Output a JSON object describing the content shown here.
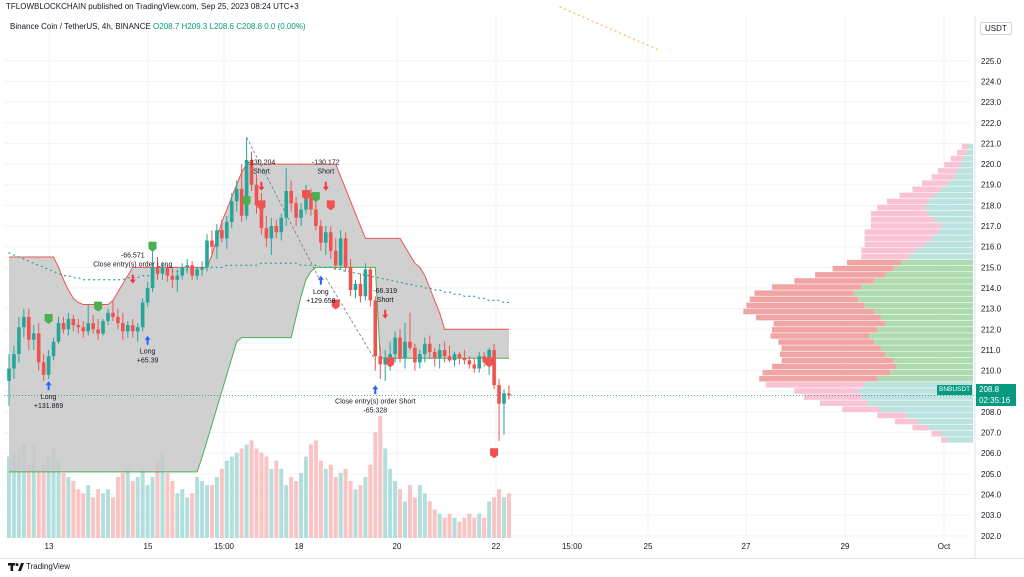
{
  "header": {
    "publisher_text": "TFLOWBLOCKCHAIN published on TradingView.com, Sep 25, 2023 08:24 UTC+3"
  },
  "legend": {
    "symbol": "Binance Coin / TetherUS, 4h, BINANCE",
    "ohlc": "O208.7  H209.3  L208.6  C208.8  0.0 (0.00%)"
  },
  "currency_button": "USDT",
  "price_tag": {
    "price": "208.8",
    "countdown": "02:35:16"
  },
  "symbol_tag": "BNBUSDT",
  "footer": {
    "brand": "TradingView"
  },
  "colors": {
    "up": "#26a69a",
    "down": "#ef5350",
    "channel_fill": "#c8c8c8",
    "channel_upper": "#ef5350",
    "channel_lower": "#4caf50",
    "volume_up": "#b2dfdb",
    "volume_down": "#f8c4c4",
    "price_line": "#089981"
  },
  "chart_data": {
    "type": "candlestick",
    "timeframe": "4h",
    "x_tick_labels": [
      "13",
      "15",
      "15:00",
      "18",
      "20",
      "22",
      "15:00",
      "25",
      "27",
      "29",
      "Oct"
    ],
    "y_tick_labels": [
      "202.0",
      "203.0",
      "204.0",
      "205.0",
      "206.0",
      "207.0",
      "208.0",
      "209.0",
      "210.0",
      "211.0",
      "212.0",
      "213.0",
      "214.0",
      "215.0",
      "216.0",
      "217.0",
      "218.0",
      "219.0",
      "220.0",
      "221.0",
      "222.0",
      "223.0",
      "224.0",
      "225.0"
    ],
    "ylim": [
      201.8,
      226.2
    ],
    "last_price": 208.8,
    "candles": [
      [
        209.5,
        210.8,
        208.3,
        210.1
      ],
      [
        210.1,
        211.2,
        209.6,
        210.8
      ],
      [
        210.8,
        212.6,
        210.4,
        212.1
      ],
      [
        212.1,
        213.0,
        211.6,
        212.6
      ],
      [
        212.6,
        213.0,
        211.0,
        211.5
      ],
      [
        211.5,
        212.2,
        211.0,
        211.8
      ],
      [
        211.8,
        212.3,
        210.0,
        210.4
      ],
      [
        210.4,
        210.8,
        209.5,
        209.8
      ],
      [
        209.8,
        211.0,
        209.6,
        210.7
      ],
      [
        210.7,
        211.6,
        210.5,
        211.4
      ],
      [
        211.4,
        212.6,
        211.3,
        212.3
      ],
      [
        212.3,
        212.6,
        211.8,
        212.0
      ],
      [
        212.0,
        212.8,
        211.7,
        212.5
      ],
      [
        212.5,
        212.7,
        211.9,
        212.2
      ],
      [
        212.2,
        212.5,
        211.8,
        212.1
      ],
      [
        212.1,
        212.4,
        211.6,
        211.9
      ],
      [
        211.9,
        213.2,
        211.7,
        212.3
      ],
      [
        212.3,
        212.7,
        211.8,
        212.0
      ],
      [
        212.0,
        212.5,
        211.5,
        211.8
      ],
      [
        211.8,
        212.5,
        211.7,
        212.4
      ],
      [
        212.4,
        213.0,
        212.2,
        212.8
      ],
      [
        212.8,
        213.4,
        212.4,
        212.6
      ],
      [
        212.6,
        213.0,
        212.0,
        212.3
      ],
      [
        212.3,
        212.8,
        211.5,
        211.9
      ],
      [
        211.9,
        212.4,
        211.6,
        212.2
      ],
      [
        212.2,
        212.5,
        211.6,
        211.9
      ],
      [
        211.9,
        212.3,
        211.4,
        212.1
      ],
      [
        212.1,
        213.5,
        211.9,
        213.3
      ],
      [
        213.3,
        214.3,
        213.1,
        214.0
      ],
      [
        214.0,
        215.8,
        213.8,
        215.0
      ],
      [
        215.0,
        215.5,
        214.4,
        214.7
      ],
      [
        214.7,
        215.2,
        214.4,
        215.0
      ],
      [
        215.0,
        215.1,
        214.3,
        214.6
      ],
      [
        214.6,
        215.0,
        214.0,
        214.4
      ],
      [
        214.4,
        214.9,
        213.8,
        214.6
      ],
      [
        214.6,
        215.2,
        214.4,
        215.0
      ],
      [
        215.0,
        215.4,
        214.7,
        215.1
      ],
      [
        215.1,
        215.3,
        214.4,
        214.6
      ],
      [
        214.6,
        215.0,
        214.4,
        214.9
      ],
      [
        214.9,
        215.3,
        214.6,
        215.0
      ],
      [
        215.0,
        216.6,
        214.8,
        216.3
      ],
      [
        216.3,
        216.8,
        215.6,
        216.0
      ],
      [
        216.0,
        217.1,
        215.4,
        216.8
      ],
      [
        216.8,
        217.3,
        216.2,
        216.4
      ],
      [
        216.4,
        217.5,
        215.9,
        217.2
      ],
      [
        217.2,
        218.6,
        216.9,
        218.2
      ],
      [
        218.2,
        219.2,
        217.7,
        218.8
      ],
      [
        218.8,
        220.0,
        217.2,
        217.5
      ],
      [
        217.5,
        221.3,
        217.3,
        220.2
      ],
      [
        220.2,
        220.6,
        218.7,
        219.0
      ],
      [
        219.0,
        219.5,
        217.6,
        218.0
      ],
      [
        218.0,
        218.6,
        216.6,
        216.9
      ],
      [
        216.9,
        217.5,
        216.0,
        216.4
      ],
      [
        216.4,
        217.4,
        215.6,
        217.0
      ],
      [
        217.0,
        217.3,
        216.4,
        216.7
      ],
      [
        216.7,
        217.6,
        216.3,
        217.4
      ],
      [
        217.4,
        219.8,
        217.0,
        218.7
      ],
      [
        218.7,
        219.2,
        217.7,
        218.1
      ],
      [
        218.1,
        218.4,
        217.0,
        217.4
      ],
      [
        217.4,
        218.1,
        217.0,
        217.8
      ],
      [
        217.8,
        219.0,
        217.6,
        218.6
      ],
      [
        218.6,
        218.8,
        217.5,
        217.8
      ],
      [
        217.8,
        218.2,
        216.8,
        217.0
      ],
      [
        217.0,
        217.3,
        215.8,
        216.2
      ],
      [
        216.2,
        217.0,
        215.6,
        216.7
      ],
      [
        216.7,
        217.0,
        215.4,
        215.8
      ],
      [
        215.8,
        216.4,
        214.9,
        215.1
      ],
      [
        215.1,
        216.8,
        214.9,
        216.4
      ],
      [
        216.4,
        216.7,
        214.8,
        215.0
      ],
      [
        215.0,
        215.4,
        213.6,
        213.9
      ],
      [
        213.9,
        214.4,
        213.5,
        214.2
      ],
      [
        214.2,
        214.7,
        213.3,
        213.6
      ],
      [
        213.6,
        215.2,
        213.4,
        214.9
      ],
      [
        214.9,
        215.0,
        213.1,
        213.4
      ],
      [
        213.4,
        213.6,
        210.0,
        210.7
      ],
      [
        210.7,
        211.2,
        209.6,
        210.3
      ],
      [
        210.3,
        211.0,
        209.5,
        210.6
      ],
      [
        210.6,
        211.4,
        210.0,
        210.8
      ],
      [
        210.8,
        211.9,
        210.4,
        211.6
      ],
      [
        211.6,
        212.0,
        210.4,
        210.6
      ],
      [
        210.6,
        212.3,
        210.1,
        211.4
      ],
      [
        211.4,
        212.8,
        211.0,
        211.1
      ],
      [
        211.1,
        211.3,
        210.0,
        210.4
      ],
      [
        210.4,
        211.0,
        210.1,
        210.8
      ],
      [
        210.8,
        211.6,
        210.4,
        211.3
      ],
      [
        211.3,
        211.7,
        210.6,
        210.9
      ],
      [
        210.9,
        211.1,
        210.2,
        210.6
      ],
      [
        210.6,
        211.3,
        210.1,
        211.0
      ],
      [
        211.0,
        211.4,
        210.4,
        210.7
      ],
      [
        210.7,
        211.2,
        210.4,
        210.5
      ],
      [
        210.5,
        210.9,
        210.2,
        210.8
      ],
      [
        210.8,
        210.9,
        210.3,
        210.6
      ],
      [
        210.6,
        211.0,
        210.3,
        210.5
      ],
      [
        210.5,
        210.7,
        210.1,
        210.3
      ],
      [
        210.3,
        210.6,
        209.9,
        210.1
      ],
      [
        210.1,
        210.9,
        209.9,
        210.7
      ],
      [
        210.7,
        210.9,
        210.2,
        210.4
      ],
      [
        210.4,
        211.1,
        209.8,
        211.0
      ],
      [
        211.0,
        211.3,
        209.1,
        209.3
      ],
      [
        209.3,
        209.6,
        206.6,
        208.4
      ],
      [
        208.4,
        209.1,
        206.9,
        208.9
      ],
      [
        208.9,
        209.3,
        208.6,
        208.8
      ]
    ],
    "volumes": [
      40,
      42,
      44,
      46,
      36,
      46,
      34,
      36,
      40,
      44,
      38,
      32,
      30,
      28,
      24,
      22,
      26,
      20,
      24,
      22,
      24,
      20,
      30,
      32,
      34,
      28,
      30,
      34,
      26,
      30,
      38,
      42,
      32,
      28,
      22,
      24,
      20,
      22,
      30,
      28,
      26,
      26,
      30,
      34,
      38,
      40,
      42,
      44,
      46,
      48,
      44,
      42,
      40,
      34,
      38,
      34,
      26,
      30,
      28,
      32,
      40,
      46,
      48,
      38,
      34,
      36,
      30,
      32,
      34,
      28,
      24,
      26,
      30,
      36,
      52,
      60,
      44,
      34,
      28,
      24,
      18,
      26,
      20,
      26,
      22,
      18,
      14,
      12,
      10,
      12,
      10,
      8,
      10,
      12,
      10,
      12,
      10,
      18,
      20,
      24,
      20,
      22
    ],
    "volume_ylim": [
      0,
      58
    ],
    "channel_upper": [
      215.5,
      215.5,
      215.5,
      215.5,
      215.5,
      215.5,
      215.5,
      215.5,
      215.5,
      215.5,
      215.0,
      214.4,
      213.9,
      213.5,
      213.3,
      213.2,
      213.2,
      213.2,
      213.2,
      213.2,
      213.2,
      213.4,
      213.8,
      214.2,
      214.6,
      215.0,
      215.0,
      215.0,
      215.0,
      215.0,
      215.0,
      215.0,
      215.0,
      215.0,
      215.0,
      215.0,
      215.0,
      215.0,
      215.0,
      215.0,
      215.0,
      215.6,
      216.4,
      217.2,
      217.8,
      218.4,
      219.0,
      219.6,
      220.0,
      220.0,
      220.0,
      220.0,
      220.0,
      220.0,
      220.0,
      220.0,
      220.0,
      220.0,
      220.0,
      220.0,
      220.0,
      220.0,
      220.0,
      220.0,
      220.0,
      220.0,
      220.0,
      219.4,
      218.8,
      218.2,
      217.6,
      217.0,
      216.4,
      216.4,
      216.4,
      216.4,
      216.4,
      216.4,
      216.4,
      216.4,
      216.0,
      215.6,
      215.2,
      215.0,
      214.6,
      214.0,
      213.4,
      212.8,
      212.0,
      212.0,
      212.0,
      212.0,
      212.0,
      212.0,
      212.0,
      212.0,
      212.0,
      212.0,
      212.0,
      212.0,
      212.0,
      212.0
    ],
    "channel_lower": [
      205.1,
      205.1,
      205.1,
      205.1,
      205.1,
      205.1,
      205.1,
      205.1,
      205.1,
      205.1,
      205.1,
      205.1,
      205.1,
      205.1,
      205.1,
      205.1,
      205.1,
      205.1,
      205.1,
      205.1,
      205.1,
      205.1,
      205.1,
      205.1,
      205.1,
      205.1,
      205.1,
      205.1,
      205.1,
      205.1,
      205.1,
      205.1,
      205.1,
      205.1,
      205.1,
      205.1,
      205.1,
      205.1,
      205.1,
      205.8,
      206.6,
      207.4,
      208.2,
      209.0,
      209.8,
      210.6,
      211.4,
      211.6,
      211.6,
      211.6,
      211.6,
      211.6,
      211.6,
      211.6,
      211.6,
      211.6,
      211.6,
      211.6,
      212.6,
      213.6,
      214.4,
      214.8,
      215.0,
      215.0,
      215.0,
      215.0,
      215.0,
      215.0,
      215.0,
      215.0,
      215.0,
      215.0,
      215.0,
      215.0,
      215.0,
      210.6,
      210.6,
      210.6,
      210.6,
      210.6,
      210.6,
      210.6,
      210.6,
      210.6,
      210.6,
      210.6,
      210.6,
      210.6,
      210.6,
      210.6,
      210.6,
      210.6,
      210.6,
      210.6,
      210.6,
      210.6,
      210.6,
      210.6,
      210.6,
      210.6,
      210.6,
      210.6
    ],
    "moving_average": {
      "values": [
        215.7,
        215.6,
        215.5,
        215.4,
        215.3,
        215.2,
        215.1,
        215.0,
        214.9,
        214.8,
        214.7,
        214.6,
        214.6,
        214.5,
        214.5,
        214.4,
        214.4,
        214.4,
        214.4,
        214.4,
        214.4,
        214.4,
        214.4,
        214.4,
        214.5,
        214.5,
        214.5,
        214.6,
        214.6,
        214.6,
        214.7,
        214.7,
        214.7,
        214.8,
        214.8,
        214.8,
        214.9,
        214.9,
        214.9,
        214.9,
        215.0,
        215.0,
        215.0,
        215.0,
        215.1,
        215.1,
        215.1,
        215.1,
        215.1,
        215.1,
        215.1,
        215.2,
        215.2,
        215.2,
        215.2,
        215.2,
        215.2,
        215.2,
        215.2,
        215.1,
        215.1,
        215.1,
        215.1,
        215.0,
        215.0,
        215.0,
        214.9,
        214.9,
        214.8,
        214.8,
        214.7,
        214.7,
        214.6,
        214.6,
        214.5,
        214.5,
        214.4,
        214.4,
        214.3,
        214.3,
        214.2,
        214.2,
        214.1,
        214.1,
        214.0,
        214.0,
        213.9,
        213.9,
        213.8,
        213.8,
        213.7,
        213.7,
        213.6,
        213.6,
        213.6,
        213.5,
        213.5,
        213.4,
        213.4,
        213.4,
        213.3,
        213.3
      ]
    },
    "upper_dotted_line": {
      "from_price": 227.6,
      "to_price": 225.5
    },
    "trade_markers": [
      {
        "type": "Long",
        "pnl": "+131.869",
        "side": "long",
        "index": 8,
        "price": 209.2
      },
      {
        "type": "Long",
        "pnl": "+65.39",
        "side": "long",
        "index": 28,
        "price": 211.4
      },
      {
        "type": "Close entry(s) order Long",
        "pnl": "-66.571",
        "side": "short",
        "index": 25,
        "price": 214.5
      },
      {
        "type": "Short",
        "pnl": "-130.204",
        "side": "short",
        "index": 51,
        "price": 219.0
      },
      {
        "type": "Short",
        "pnl": "-130.172",
        "side": "short",
        "index": 64,
        "price": 219.0
      },
      {
        "type": "Long",
        "pnl": "+129.658",
        "side": "long",
        "index": 63,
        "price": 214.3
      },
      {
        "type": "Short",
        "pnl": "-66.319",
        "side": "short",
        "index": 76,
        "price": 212.8
      },
      {
        "type": "Close entry(s) order Short",
        "pnl": "-65.328",
        "side": "long",
        "index": 74,
        "price": 209.0
      }
    ],
    "flag_markers": [
      {
        "side": "down",
        "index": 51,
        "price": 218.0
      },
      {
        "side": "down",
        "index": 60,
        "price": 218.5
      },
      {
        "side": "down",
        "index": 65,
        "price": 218.0
      },
      {
        "side": "down",
        "index": 66,
        "price": 213.2
      },
      {
        "side": "down",
        "index": 77,
        "price": 210.4
      },
      {
        "side": "down",
        "index": 97,
        "price": 210.4
      },
      {
        "side": "down",
        "index": 98,
        "price": 206.0
      },
      {
        "side": "up",
        "index": 8,
        "price": 212.5
      },
      {
        "side": "up",
        "index": 18,
        "price": 213.1
      },
      {
        "side": "up",
        "index": 29,
        "price": 216.0
      },
      {
        "side": "up",
        "index": 48,
        "price": 218.2
      },
      {
        "side": "up",
        "index": 62,
        "price": 218.4
      }
    ],
    "trade_lines": [
      {
        "from": [
          48,
          221.3
        ],
        "to": [
          63,
          214.3
        ]
      },
      {
        "from": [
          64,
          214.5
        ],
        "to": [
          74,
          210.5
        ]
      }
    ],
    "volume_profile": {
      "price_min": 206.5,
      "price_max": 221.0,
      "rows_buy": [
        0.16,
        0.2,
        0.28,
        0.35,
        0.42,
        0.58,
        0.66,
        0.7,
        0.72,
        0.68,
        0.6,
        0.52,
        0.48,
        0.5,
        0.55,
        0.58,
        0.62,
        0.65,
        0.6,
        0.55,
        0.58,
        0.62,
        0.68,
        0.72,
        0.75,
        0.7,
        0.62,
        0.55,
        0.5,
        0.45,
        0.4,
        0.36,
        0.3,
        0.26,
        0.22,
        0.2,
        0.24,
        0.28,
        0.3,
        0.28,
        0.24,
        0.2,
        0.16,
        0.12,
        0.1,
        0.08,
        0.06,
        0.04,
        0.03
      ],
      "rows_sell": [
        0.04,
        0.06,
        0.1,
        0.14,
        0.18,
        0.24,
        0.3,
        0.36,
        0.4,
        0.62,
        0.74,
        0.8,
        0.78,
        0.7,
        0.66,
        0.62,
        0.6,
        0.62,
        0.66,
        0.7,
        0.78,
        0.82,
        0.74,
        0.68,
        0.62,
        0.56,
        0.5,
        0.44,
        0.38,
        0.34,
        0.3,
        0.34,
        0.38,
        0.42,
        0.46,
        0.44,
        0.4,
        0.36,
        0.3,
        0.26,
        0.22,
        0.18,
        0.16,
        0.14,
        0.12,
        0.1,
        0.08,
        0.06,
        0.04
      ],
      "value_area": [
        209.5,
        215.5
      ]
    }
  }
}
